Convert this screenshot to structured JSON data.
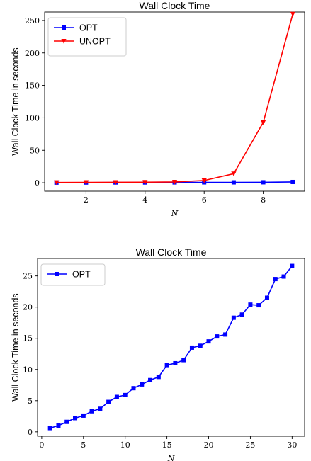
{
  "chart_data": [
    {
      "type": "line",
      "title": "Wall Clock Time",
      "xlabel": "N",
      "ylabel": "Wall Clock Time in seconds",
      "xlim": [
        0.6,
        9.4
      ],
      "ylim": [
        -13,
        263
      ],
      "xticks": [
        2,
        4,
        6,
        8
      ],
      "yticks": [
        0,
        50,
        100,
        150,
        200,
        250
      ],
      "legend_position": "top-left",
      "grid": false,
      "series": [
        {
          "name": "OPT",
          "color": "#0000ff",
          "marker": "square",
          "x": [
            1,
            2,
            3,
            4,
            5,
            6,
            7,
            8,
            9
          ],
          "y": [
            0.2,
            0.3,
            0.4,
            0.4,
            0.5,
            0.6,
            0.6,
            0.7,
            1.2
          ]
        },
        {
          "name": "UNOPT",
          "color": "#ff0000",
          "marker": "triangle-down",
          "x": [
            1,
            2,
            3,
            4,
            5,
            6,
            7,
            8,
            9
          ],
          "y": [
            0.5,
            0.6,
            0.7,
            0.9,
            1.2,
            3.5,
            14,
            93,
            260
          ]
        }
      ]
    },
    {
      "type": "line",
      "title": "Wall Clock Time",
      "xlabel": "N",
      "ylabel": "Wall Clock Time in seconds",
      "xlim": [
        -0.5,
        31.5
      ],
      "ylim": [
        -0.7,
        27.8
      ],
      "xticks": [
        0,
        5,
        10,
        15,
        20,
        25,
        30
      ],
      "yticks": [
        0,
        5,
        10,
        15,
        20,
        25
      ],
      "legend_position": "top-left",
      "grid": false,
      "series": [
        {
          "name": "OPT",
          "color": "#0000ff",
          "marker": "square",
          "x": [
            1,
            2,
            3,
            4,
            5,
            6,
            7,
            8,
            9,
            10,
            11,
            12,
            13,
            14,
            15,
            16,
            17,
            18,
            19,
            20,
            21,
            22,
            23,
            24,
            25,
            26,
            27,
            28,
            29,
            30
          ],
          "y": [
            0.6,
            1.0,
            1.6,
            2.2,
            2.6,
            3.3,
            3.7,
            4.8,
            5.6,
            5.9,
            7.0,
            7.6,
            8.3,
            8.8,
            10.7,
            11.0,
            11.5,
            13.5,
            13.8,
            14.5,
            15.3,
            15.6,
            18.3,
            18.8,
            20.4,
            20.3,
            21.5,
            24.5,
            24.9,
            26.6
          ]
        }
      ]
    }
  ]
}
